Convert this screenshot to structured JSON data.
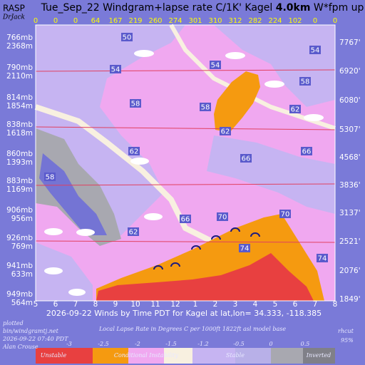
{
  "chart_data": {
    "type": "windgram",
    "title": {
      "prefix": "Tue_Sep_22 Windgram+lapse rate C/1K'  Kagel",
      "bold": "4.0km",
      "suffix": "W*fpm up"
    },
    "brand": "RASP",
    "brand_sub": "DrJack",
    "x_title": "2026-09-22 Winds by Time PDT for Kagel at lat,lon= 34.333, -118.385",
    "categories": [
      "5",
      "6",
      "7",
      "8",
      "9",
      "10",
      "11",
      "12",
      "1",
      "2",
      "3",
      "4",
      "5",
      "6",
      "7",
      "8"
    ],
    "w_star": [
      0,
      0,
      0,
      64,
      167,
      219,
      260,
      274,
      301,
      310,
      312,
      282,
      224,
      102,
      0,
      0
    ],
    "levels_left": [
      {
        "mb": "766mb",
        "m": "2368m"
      },
      {
        "mb": "790mb",
        "m": "2110m"
      },
      {
        "mb": "814mb",
        "m": "1854m"
      },
      {
        "mb": "838mb",
        "m": "1618m"
      },
      {
        "mb": "860mb",
        "m": "1393m"
      },
      {
        "mb": "883mb",
        "m": "1169m"
      },
      {
        "mb": "906mb",
        "m": "956m"
      },
      {
        "mb": "926mb",
        "m": "769m"
      },
      {
        "mb": "941mb",
        "m": "633m"
      },
      {
        "mb": "949mb",
        "m": "564m"
      }
    ],
    "levels_right": [
      "7767'",
      "6920'",
      "6080'",
      "5307'",
      "4568'",
      "3836'",
      "3137'",
      "2521'",
      "2076'",
      "1849'"
    ],
    "contour_labels": [
      "50",
      "54",
      "54",
      "54",
      "58",
      "58",
      "58",
      "62",
      "62",
      "62",
      "66",
      "66",
      "58",
      "66",
      "62",
      "70",
      "70",
      "74",
      "74"
    ],
    "lapse_legend": {
      "title": "Local Lapse Rate in Degrees C per 1000ft   1822ft asl model base",
      "ticks": [
        -3,
        -2.5,
        -2,
        -1.5,
        -1.2,
        -0.5,
        0,
        0.5
      ],
      "classes": [
        "Unstable",
        "Conditional Instability",
        "Stable",
        "Inverted"
      ]
    },
    "footer": {
      "lines": [
        "plotted",
        "bin/windgramtj.net",
        "2026-09-22 07:40 PDT",
        "Alan Crouse"
      ],
      "rhcut": "rhcut",
      "rhcut_value": "95%"
    }
  }
}
